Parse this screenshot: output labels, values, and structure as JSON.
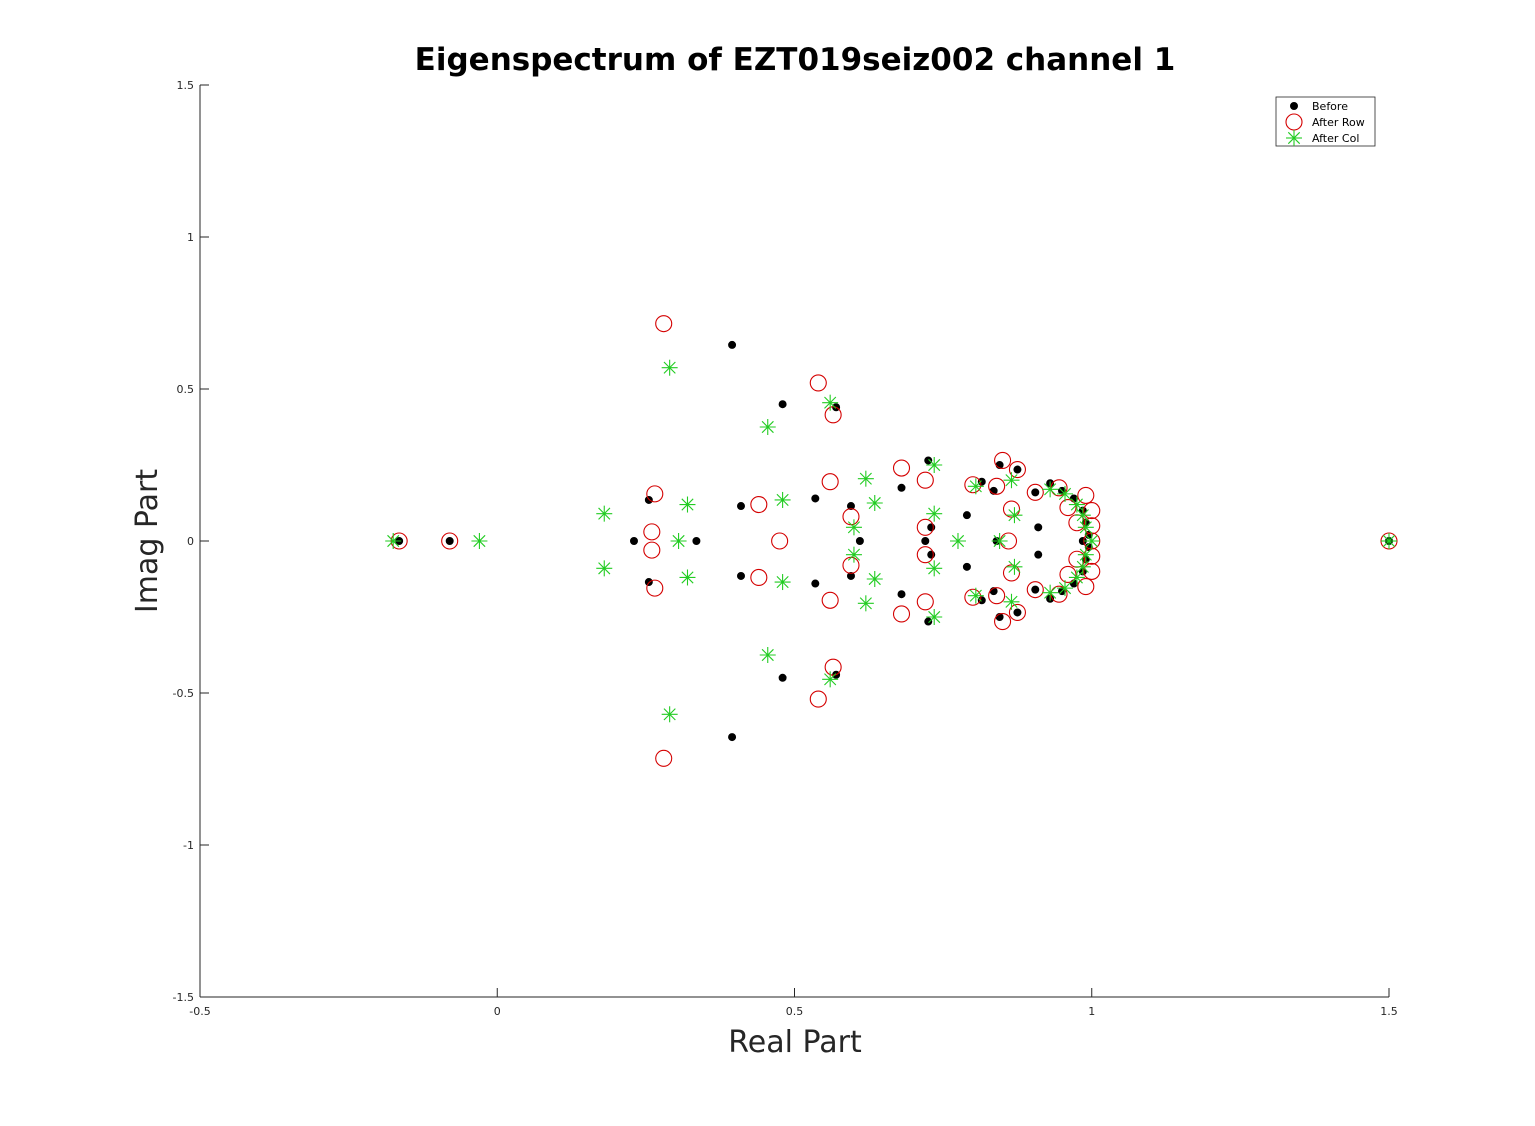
{
  "chart_data": {
    "type": "scatter",
    "title": "Eigenspectrum of EZT019seiz002 channel 1",
    "xlabel": "Real Part",
    "ylabel": "Imag Part",
    "xlim": [
      -0.5,
      1.5
    ],
    "ylim": [
      -1.5,
      1.5
    ],
    "xticks": [
      -0.5,
      0,
      0.5,
      1,
      1.5
    ],
    "xtick_labels": [
      "-0.5",
      "0",
      "0.5",
      "1",
      "1.5"
    ],
    "yticks": [
      -1.5,
      -1,
      -0.5,
      0,
      0.5,
      1,
      1.5
    ],
    "ytick_labels": [
      "-1.5",
      "-1",
      "-0.5",
      "0",
      "0.5",
      "1",
      "1.5"
    ],
    "grid": false,
    "legend_position": "top-right",
    "series": [
      {
        "name": "Before",
        "marker": "filled-dot",
        "color": "#000000",
        "points": [
          [
            -0.165,
            0.0
          ],
          [
            -0.08,
            0.0
          ],
          [
            1.5,
            0.0
          ],
          [
            0.395,
            0.645
          ],
          [
            0.395,
            -0.645
          ],
          [
            0.48,
            0.45
          ],
          [
            0.48,
            -0.45
          ],
          [
            0.57,
            0.44
          ],
          [
            0.57,
            -0.44
          ],
          [
            0.255,
            0.135
          ],
          [
            0.255,
            -0.135
          ],
          [
            0.23,
            0.0
          ],
          [
            0.335,
            0.0
          ],
          [
            0.41,
            0.115
          ],
          [
            0.41,
            -0.115
          ],
          [
            0.535,
            0.14
          ],
          [
            0.535,
            -0.14
          ],
          [
            0.595,
            0.115
          ],
          [
            0.595,
            -0.115
          ],
          [
            0.61,
            0.0
          ],
          [
            0.68,
            0.175
          ],
          [
            0.68,
            -0.175
          ],
          [
            0.725,
            0.265
          ],
          [
            0.725,
            -0.265
          ],
          [
            0.73,
            0.045
          ],
          [
            0.73,
            -0.045
          ],
          [
            0.72,
            0.0
          ],
          [
            0.79,
            0.085
          ],
          [
            0.79,
            -0.085
          ],
          [
            0.815,
            0.195
          ],
          [
            0.815,
            -0.195
          ],
          [
            0.835,
            0.165
          ],
          [
            0.835,
            -0.165
          ],
          [
            0.845,
            0.25
          ],
          [
            0.845,
            -0.25
          ],
          [
            0.875,
            0.235
          ],
          [
            0.875,
            -0.235
          ],
          [
            0.84,
            0.0
          ],
          [
            0.91,
            0.045
          ],
          [
            0.91,
            -0.045
          ],
          [
            0.905,
            0.16
          ],
          [
            0.905,
            -0.16
          ],
          [
            0.93,
            0.19
          ],
          [
            0.93,
            -0.19
          ],
          [
            0.95,
            0.165
          ],
          [
            0.95,
            -0.165
          ],
          [
            0.97,
            0.14
          ],
          [
            0.97,
            -0.14
          ],
          [
            0.985,
            0.1
          ],
          [
            0.985,
            -0.1
          ],
          [
            0.99,
            0.06
          ],
          [
            0.99,
            -0.06
          ],
          [
            0.995,
            0.02
          ],
          [
            0.995,
            -0.02
          ],
          [
            0.985,
            0.0
          ]
        ]
      },
      {
        "name": "After Row",
        "marker": "open-circle",
        "color": "#d40000",
        "points": [
          [
            -0.165,
            0.0
          ],
          [
            -0.08,
            0.0
          ],
          [
            1.5,
            0.0
          ],
          [
            0.28,
            0.715
          ],
          [
            0.28,
            -0.715
          ],
          [
            0.54,
            0.52
          ],
          [
            0.54,
            -0.52
          ],
          [
            0.565,
            0.415
          ],
          [
            0.565,
            -0.415
          ],
          [
            0.265,
            0.155
          ],
          [
            0.265,
            -0.155
          ],
          [
            0.26,
            0.03
          ],
          [
            0.26,
            -0.03
          ],
          [
            0.44,
            0.12
          ],
          [
            0.44,
            -0.12
          ],
          [
            0.475,
            0.0
          ],
          [
            0.56,
            0.195
          ],
          [
            0.56,
            -0.195
          ],
          [
            0.595,
            0.08
          ],
          [
            0.595,
            -0.08
          ],
          [
            0.68,
            0.24
          ],
          [
            0.68,
            -0.24
          ],
          [
            0.72,
            0.2
          ],
          [
            0.72,
            -0.2
          ],
          [
            0.72,
            0.045
          ],
          [
            0.72,
            -0.045
          ],
          [
            0.8,
            0.185
          ],
          [
            0.8,
            -0.185
          ],
          [
            0.84,
            0.18
          ],
          [
            0.84,
            -0.18
          ],
          [
            0.85,
            0.265
          ],
          [
            0.85,
            -0.265
          ],
          [
            0.875,
            0.235
          ],
          [
            0.875,
            -0.235
          ],
          [
            0.865,
            0.105
          ],
          [
            0.865,
            -0.105
          ],
          [
            0.86,
            0.0
          ],
          [
            0.905,
            0.16
          ],
          [
            0.905,
            -0.16
          ],
          [
            0.945,
            0.175
          ],
          [
            0.945,
            -0.175
          ],
          [
            0.96,
            0.11
          ],
          [
            0.96,
            -0.11
          ],
          [
            0.975,
            0.06
          ],
          [
            0.975,
            -0.06
          ],
          [
            0.99,
            0.15
          ],
          [
            0.99,
            -0.15
          ],
          [
            1.0,
            0.1
          ],
          [
            1.0,
            -0.1
          ],
          [
            1.0,
            0.05
          ],
          [
            1.0,
            -0.05
          ],
          [
            1.0,
            0.0
          ]
        ]
      },
      {
        "name": "After Col",
        "marker": "asterisk",
        "color": "#22cc22",
        "points": [
          [
            -0.175,
            0.0
          ],
          [
            -0.03,
            0.0
          ],
          [
            1.5,
            0.0
          ],
          [
            0.29,
            0.57
          ],
          [
            0.29,
            -0.57
          ],
          [
            0.56,
            0.455
          ],
          [
            0.56,
            -0.455
          ],
          [
            0.455,
            0.375
          ],
          [
            0.455,
            -0.375
          ],
          [
            0.18,
            0.09
          ],
          [
            0.18,
            -0.09
          ],
          [
            0.305,
            0.0
          ],
          [
            0.32,
            0.12
          ],
          [
            0.32,
            -0.12
          ],
          [
            0.48,
            0.135
          ],
          [
            0.48,
            -0.135
          ],
          [
            0.6,
            0.045
          ],
          [
            0.6,
            -0.045
          ],
          [
            0.62,
            0.205
          ],
          [
            0.62,
            -0.205
          ],
          [
            0.635,
            0.125
          ],
          [
            0.635,
            -0.125
          ],
          [
            0.735,
            0.25
          ],
          [
            0.735,
            -0.25
          ],
          [
            0.735,
            0.09
          ],
          [
            0.735,
            -0.09
          ],
          [
            0.775,
            0.0
          ],
          [
            0.805,
            0.18
          ],
          [
            0.805,
            -0.18
          ],
          [
            0.865,
            0.2
          ],
          [
            0.865,
            -0.2
          ],
          [
            0.87,
            0.085
          ],
          [
            0.87,
            -0.085
          ],
          [
            0.845,
            0.0
          ],
          [
            0.93,
            0.17
          ],
          [
            0.93,
            -0.17
          ],
          [
            0.955,
            0.155
          ],
          [
            0.955,
            -0.155
          ],
          [
            0.975,
            0.12
          ],
          [
            0.975,
            -0.12
          ],
          [
            0.985,
            0.085
          ],
          [
            0.985,
            -0.085
          ],
          [
            0.99,
            0.045
          ],
          [
            0.99,
            -0.045
          ],
          [
            1.0,
            0.0
          ]
        ]
      }
    ]
  }
}
